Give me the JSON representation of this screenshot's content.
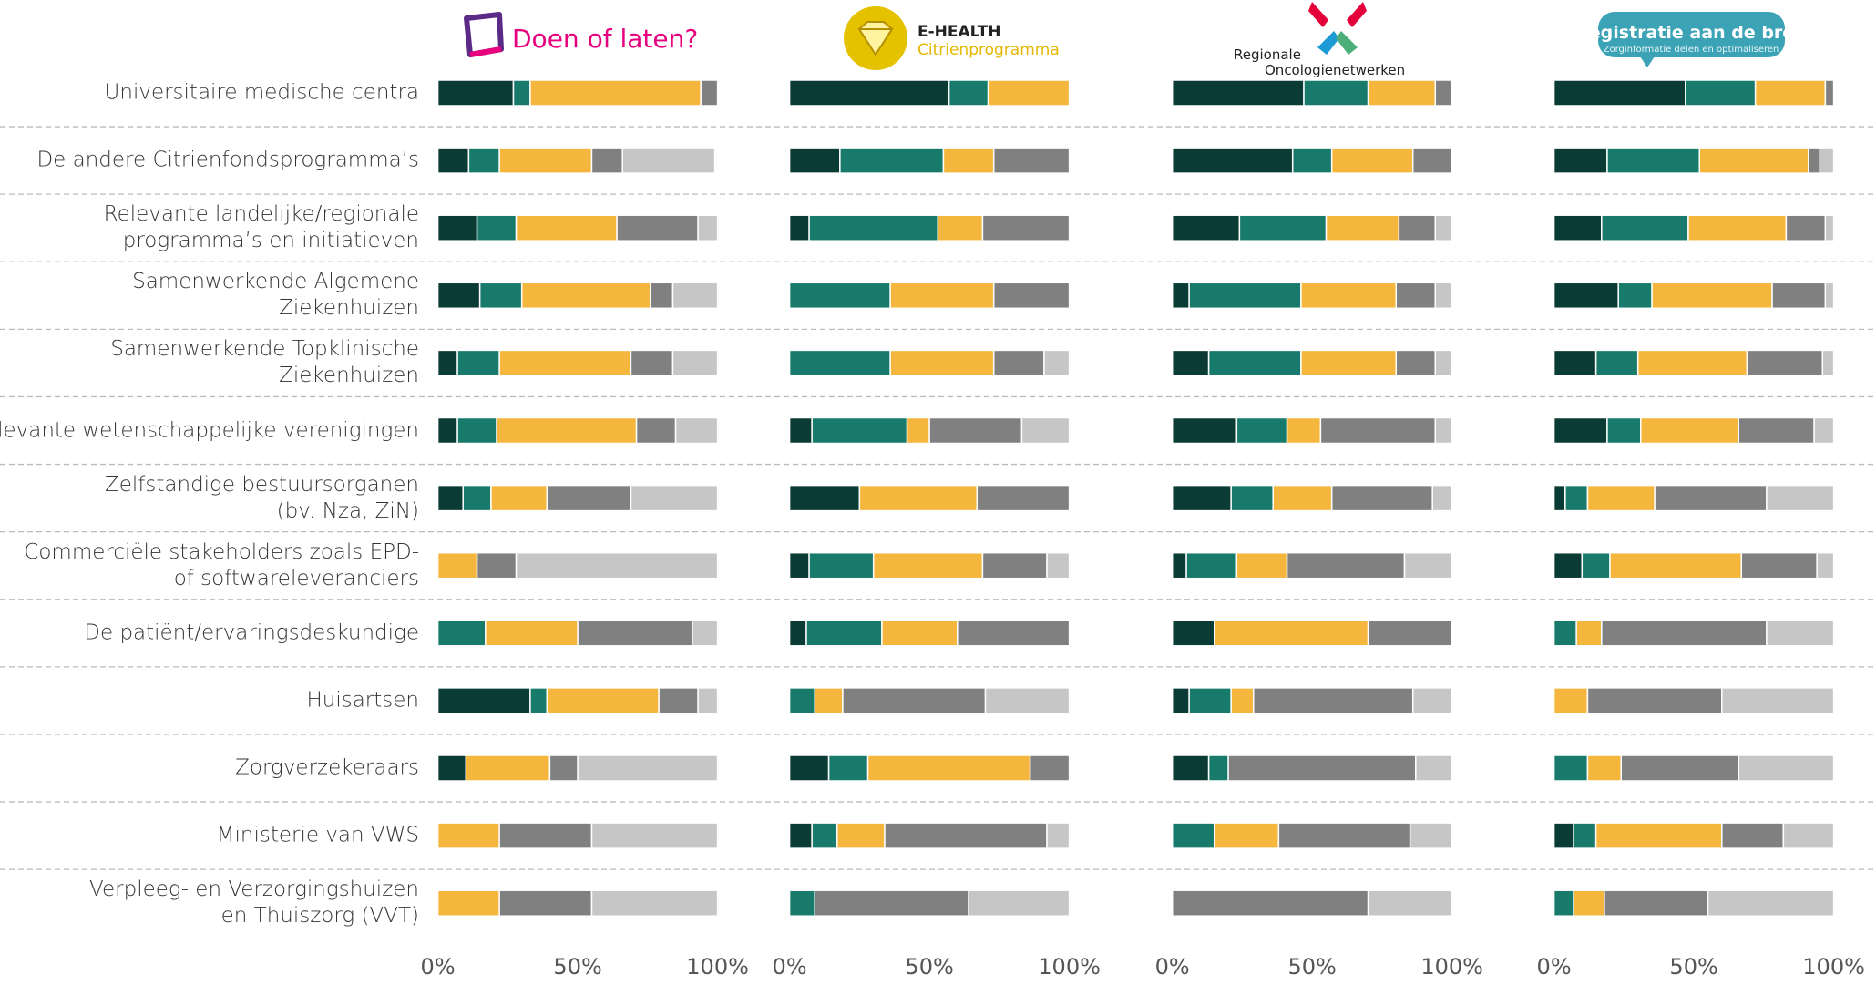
{
  "chart_data": {
    "type": "bar",
    "orientation": "horizontal",
    "stacked": true,
    "categories": [
      "Universitaire medische centra",
      "De andere Citrienfondsprogramma’s",
      "Relevante landelijke/regionale\nprogramma’s en initiatieven",
      "Samenwerkende Algemene\nZiekenhuizen",
      "Samenwerkende Topklinische\nZiekenhuizen",
      "Relevante wetenschappelijke verenigingen",
      "Zelfstandige bestuursorganen\n(bv. Nza, ZiN)",
      "Commerciële stakeholders zoals EPD-\nof softwareleveranciers",
      "De patiënt/ervaringsdeskundige",
      "Huisartsen",
      "Zorgverzekeraars",
      "Ministerie van VWS",
      "Verpleeg- en Verzorgingshuizen\nen Thuiszorg (VVT)"
    ],
    "panels": [
      {
        "title": "Doen of laten?",
        "xlim": [
          0,
          100
        ],
        "xticks": [
          {
            "value": 0,
            "label": "0%"
          },
          {
            "value": 50,
            "label": "50%"
          },
          {
            "value": 100,
            "label": "100%"
          }
        ],
        "series": [
          {
            "color": "#0b3b35",
            "values": [
              27,
              11,
              14,
              15,
              7,
              7,
              9,
              0,
              0,
              33,
              10,
              0,
              0
            ]
          },
          {
            "color": "#177a6a",
            "values": [
              6,
              11,
              14,
              15,
              15,
              14,
              10,
              0,
              17,
              6,
              0,
              0,
              0
            ]
          },
          {
            "color": "#f5b63d",
            "values": [
              61,
              33,
              36,
              46,
              47,
              50,
              20,
              14,
              33,
              40,
              30,
              22,
              22
            ]
          },
          {
            "color": "#808080",
            "values": [
              6,
              11,
              29,
              8,
              15,
              14,
              30,
              14,
              41,
              14,
              10,
              33,
              33
            ]
          },
          {
            "color": "#c6c6c6",
            "values": [
              0,
              33,
              7,
              16,
              16,
              15,
              31,
              72,
              9,
              7,
              50,
              45,
              45
            ]
          }
        ]
      },
      {
        "title": "E-HEALTH",
        "subtitle": "Citrienprogramma",
        "xlim": [
          0,
          100
        ],
        "xticks": [
          {
            "value": 0,
            "label": "0%"
          },
          {
            "value": 50,
            "label": "50%"
          },
          {
            "value": 100,
            "label": "100%"
          }
        ],
        "series": [
          {
            "color": "#0b3b35",
            "values": [
              57,
              18,
              7,
              0,
              0,
              8,
              25,
              7,
              6,
              0,
              14,
              8,
              0
            ]
          },
          {
            "color": "#177a6a",
            "values": [
              14,
              37,
              46,
              36,
              36,
              34,
              0,
              23,
              27,
              9,
              14,
              9,
              9
            ]
          },
          {
            "color": "#f5b63d",
            "values": [
              29,
              18,
              16,
              37,
              37,
              8,
              42,
              39,
              27,
              10,
              58,
              17,
              0
            ]
          },
          {
            "color": "#808080",
            "values": [
              0,
              27,
              31,
              27,
              18,
              33,
              33,
              23,
              40,
              51,
              14,
              58,
              55
            ]
          },
          {
            "color": "#c6c6c6",
            "values": [
              0,
              0,
              0,
              0,
              9,
              17,
              0,
              8,
              0,
              30,
              0,
              8,
              36
            ]
          }
        ]
      },
      {
        "title": "Regionale",
        "subtitle": "Oncologienetwerken",
        "xlim": [
          0,
          100
        ],
        "xticks": [
          {
            "value": 0,
            "label": "0%"
          },
          {
            "value": 50,
            "label": "50%"
          },
          {
            "value": 100,
            "label": "100%"
          }
        ],
        "series": [
          {
            "color": "#0b3b35",
            "values": [
              47,
              43,
              24,
              6,
              13,
              23,
              21,
              5,
              15,
              6,
              13,
              0,
              0
            ]
          },
          {
            "color": "#177a6a",
            "values": [
              23,
              14,
              31,
              40,
              33,
              18,
              15,
              18,
              0,
              15,
              7,
              15,
              0
            ]
          },
          {
            "color": "#f5b63d",
            "values": [
              24,
              29,
              26,
              34,
              34,
              12,
              21,
              18,
              55,
              8,
              0,
              23,
              0
            ]
          },
          {
            "color": "#808080",
            "values": [
              6,
              14,
              13,
              14,
              14,
              41,
              36,
              42,
              30,
              57,
              67,
              47,
              70
            ]
          },
          {
            "color": "#c6c6c6",
            "values": [
              0,
              0,
              6,
              6,
              6,
              6,
              7,
              17,
              0,
              14,
              13,
              15,
              30
            ]
          }
        ]
      },
      {
        "title": "Registratie aan de bron",
        "subtitle": "Zorginformatie delen en optimaliseren",
        "xlim": [
          0,
          100
        ],
        "xticks": [
          {
            "value": 0,
            "label": "0%"
          },
          {
            "value": 50,
            "label": "50%"
          },
          {
            "value": 100,
            "label": "100%"
          }
        ],
        "series": [
          {
            "color": "#0b3b35",
            "values": [
              47,
              19,
              17,
              23,
              15,
              19,
              4,
              10,
              0,
              0,
              0,
              7,
              0
            ]
          },
          {
            "color": "#177a6a",
            "values": [
              25,
              33,
              31,
              12,
              15,
              12,
              8,
              10,
              8,
              0,
              12,
              8,
              7
            ]
          },
          {
            "color": "#f5b63d",
            "values": [
              25,
              39,
              35,
              43,
              39,
              35,
              24,
              47,
              9,
              12,
              12,
              45,
              11
            ]
          },
          {
            "color": "#808080",
            "values": [
              3,
              4,
              14,
              19,
              27,
              27,
              40,
              27,
              59,
              48,
              42,
              22,
              37
            ]
          },
          {
            "color": "#c6c6c6",
            "values": [
              0,
              5,
              3,
              3,
              4,
              7,
              24,
              6,
              24,
              40,
              34,
              18,
              45
            ]
          }
        ]
      }
    ]
  }
}
